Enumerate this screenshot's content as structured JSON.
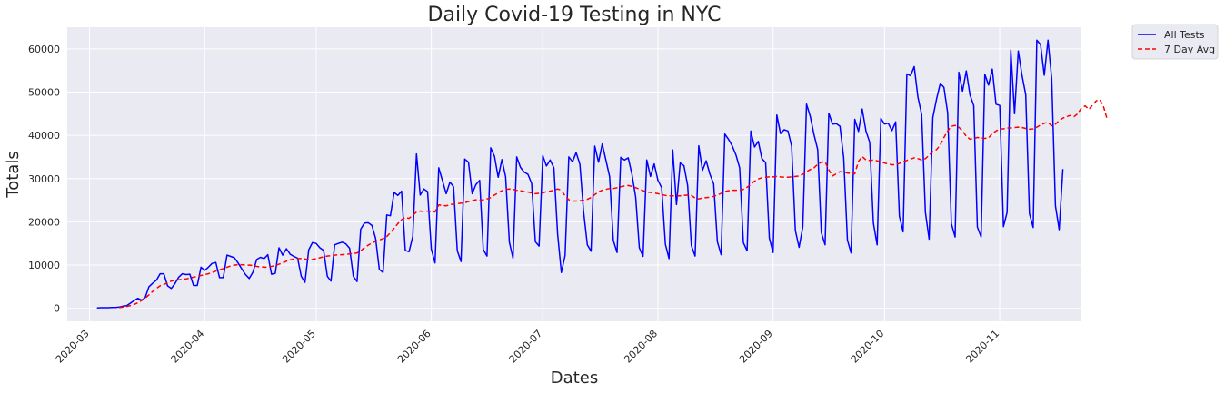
{
  "chart_data": {
    "type": "line",
    "title": "Daily Covid-19 Testing in NYC",
    "xlabel": "Dates",
    "ylabel": "Totals",
    "x_tick_labels": [
      "2020-03",
      "2020-04",
      "2020-05",
      "2020-06",
      "2020-07",
      "2020-08",
      "2020-09",
      "2020-10",
      "2020-11"
    ],
    "y_ticks": [
      0,
      10000,
      20000,
      30000,
      40000,
      50000,
      60000
    ],
    "xlim": [
      "2020-02-24",
      "2020-11-23"
    ],
    "ylim": [
      -3000,
      65000
    ],
    "grid": true,
    "background_color": "#eaeaf2",
    "legend_position": "outside-top-right",
    "series": [
      {
        "name": "All Tests",
        "color": "#0000ff",
        "style": "solid",
        "x_start": "2020-03-03",
        "x_step_days": 1,
        "values": [
          100,
          150,
          150,
          150,
          180,
          200,
          300,
          500,
          600,
          1200,
          1800,
          2300,
          1900,
          2500,
          5000,
          5800,
          6500,
          8000,
          8000,
          5200,
          4600,
          5700,
          7200,
          8000,
          7800,
          7900,
          5300,
          5300,
          9500,
          8800,
          9500,
          10400,
          10600,
          7100,
          7100,
          12300,
          12000,
          11700,
          10500,
          9100,
          7800,
          6900,
          8400,
          11300,
          11800,
          11500,
          12400,
          7900,
          8100,
          14000,
          12300,
          13800,
          12500,
          12000,
          11600,
          7400,
          6000,
          13500,
          15200,
          15000,
          14000,
          13400,
          7400,
          6300,
          14700,
          15000,
          15300,
          14900,
          13900,
          7400,
          6200,
          18300,
          19700,
          19800,
          19200,
          16200,
          9000,
          8300,
          21600,
          21400,
          26800,
          26100,
          27100,
          13400,
          13100,
          16600,
          35700,
          26200,
          27600,
          27000,
          13700,
          10500,
          32500,
          29500,
          26500,
          29200,
          28100,
          13300,
          10800,
          34500,
          33800,
          26500,
          28600,
          29600,
          13600,
          12100,
          37100,
          35200,
          30300,
          34400,
          30400,
          15300,
          11600,
          35000,
          32600,
          31500,
          31000,
          28900,
          15400,
          14400,
          35300,
          32900,
          34300,
          32500,
          17200,
          8300,
          12200,
          35000,
          33900,
          36000,
          33300,
          22300,
          14700,
          13200,
          37500,
          33800,
          38000,
          34300,
          30500,
          15700,
          12900,
          34900,
          34300,
          34800,
          31000,
          25700,
          14000,
          12000,
          34300,
          30500,
          33400,
          29600,
          27900,
          14800,
          11500,
          36600,
          24000,
          33600,
          33000,
          28400,
          14500,
          12100,
          37600,
          31900,
          34100,
          31000,
          28800,
          15400,
          12400,
          40300,
          39100,
          37600,
          35500,
          32500,
          15200,
          13300,
          41000,
          37300,
          38600,
          34600,
          33700,
          16200,
          12900,
          44700,
          40400,
          41300,
          41000,
          37500,
          18000,
          14100,
          18800,
          47200,
          44400,
          40200,
          36700,
          17500,
          14700,
          45100,
          42600,
          42700,
          42100,
          34800,
          15800,
          12800,
          43700,
          40900,
          46100,
          41000,
          38400,
          19700,
          14700,
          43900,
          42600,
          42800,
          41100,
          43100,
          21300,
          17700,
          54200,
          53800,
          55900,
          48800,
          44800,
          22200,
          16000,
          44100,
          48400,
          52000,
          51100,
          45200,
          19600,
          16500,
          54600,
          50200,
          54900,
          49300,
          46900,
          18800,
          16500,
          54100,
          51600,
          55300,
          47200,
          46900,
          18900,
          22200,
          59700,
          45000,
          59500,
          53900,
          49400,
          21900,
          18700,
          62000,
          61000,
          53900,
          62000,
          53100,
          23700,
          18200,
          32200
        ],
        "label_in_legend": "All Tests"
      },
      {
        "name": "7 Day Avg",
        "color": "#ff0000",
        "style": "dashed",
        "x_start": "2020-03-09",
        "x_step_days": 1,
        "values": [
          140,
          300,
          450,
          650,
          900,
          1300,
          1800,
          2400,
          3100,
          3900,
          4600,
          5200,
          5500,
          5900,
          6300,
          6500,
          6600,
          6700,
          6800,
          7000,
          7200,
          7400,
          7600,
          7800,
          8000,
          8300,
          8600,
          8900,
          9200,
          9500,
          9800,
          10000,
          10100,
          10100,
          10000,
          10000,
          9900,
          9700,
          9600,
          9500,
          9500,
          9700,
          9900,
          10200,
          10500,
          10900,
          11200,
          11400,
          11500,
          11500,
          11400,
          11300,
          11300,
          11500,
          11700,
          11900,
          12100,
          12200,
          12300,
          12400,
          12400,
          12500,
          12600,
          12700,
          12800,
          13300,
          14000,
          14600,
          15100,
          15500,
          15800,
          16100,
          16600,
          17500,
          18500,
          19600,
          20500,
          21000,
          20800,
          21500,
          22300,
          22500,
          22400,
          22500,
          22400,
          22300,
          23900,
          23800,
          23700,
          24000,
          24100,
          24200,
          24300,
          24400,
          24700,
          24900,
          25100,
          25000,
          25100,
          25300,
          25600,
          26200,
          26700,
          27200,
          27500,
          27600,
          27500,
          27300,
          27200,
          27000,
          26900,
          26700,
          26500,
          26600,
          26700,
          27000,
          27100,
          27300,
          27600,
          27300,
          26000,
          25100,
          24800,
          24800,
          24900,
          25000,
          25200,
          25600,
          26300,
          26900,
          27300,
          27500,
          27700,
          27700,
          27900,
          28100,
          28300,
          28400,
          28200,
          27900,
          27600,
          27200,
          26900,
          26800,
          26700,
          26500,
          26300,
          26100,
          26000,
          26000,
          26000,
          26000,
          26100,
          26200,
          26100,
          25500,
          25300,
          25500,
          25600,
          25700,
          25900,
          26200,
          26600,
          27000,
          27200,
          27300,
          27300,
          27300,
          27500,
          28000,
          28700,
          29400,
          29900,
          30200,
          30300,
          30400,
          30400,
          30500,
          30400,
          30300,
          30300,
          30400,
          30500,
          30600,
          31000,
          31600,
          32100,
          32500,
          33300,
          33800,
          33900,
          32000,
          30600,
          31100,
          31600,
          31500,
          31300,
          31200,
          31100,
          34000,
          35100,
          34300,
          34200,
          34300,
          34100,
          33900,
          33600,
          33400,
          33200,
          33200,
          33500,
          33900,
          34200,
          34500,
          34800,
          34600,
          34300,
          34600,
          35400,
          36200,
          36700,
          37800,
          39500,
          41000,
          42100,
          42300,
          41900,
          41000,
          39800,
          39100,
          39300,
          39500,
          39400,
          39300,
          39400,
          40400,
          41000,
          41500,
          41500,
          41700,
          41700,
          41800,
          41900,
          41800,
          41600,
          41400,
          41500,
          41900,
          42400,
          42800,
          43000,
          42200,
          42600,
          43400,
          44000,
          44300,
          44600,
          44300,
          45000,
          46300,
          46800,
          46000,
          47000,
          48000,
          48200,
          46500,
          43500
        ]
      }
    ]
  }
}
